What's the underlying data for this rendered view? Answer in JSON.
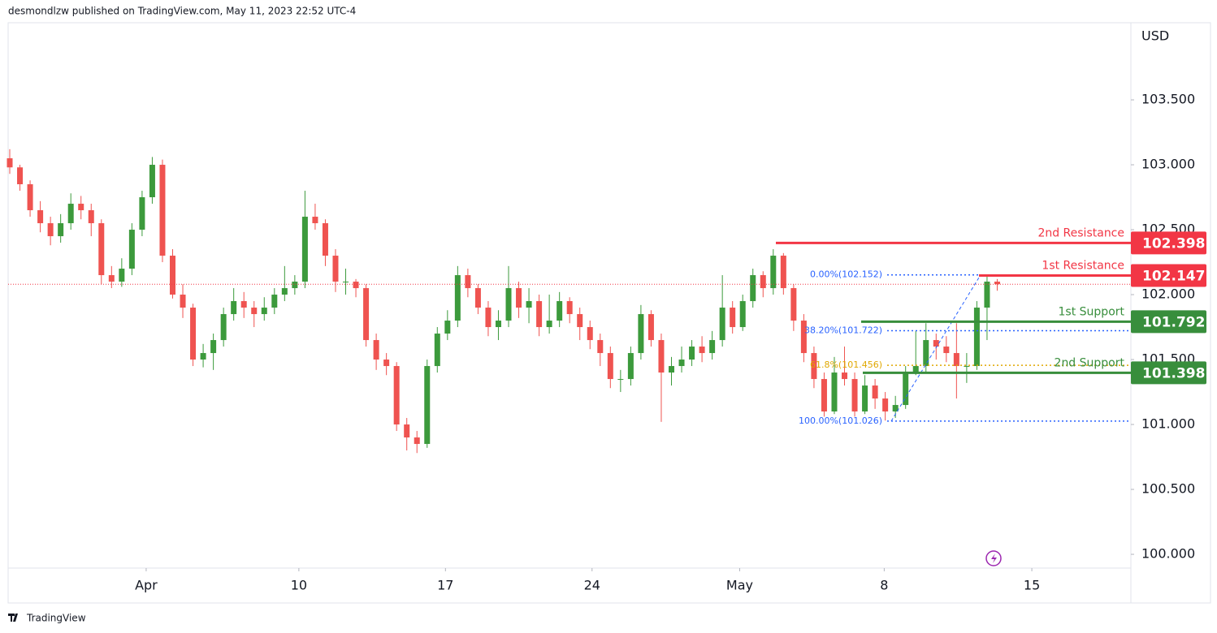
{
  "header": {
    "text": "desmondlzw published on TradingView.com, May 11, 2023 22:52 UTC-4"
  },
  "footer": {
    "brand": "TradingView"
  },
  "chart_data": {
    "type": "candlestick",
    "currency": "USD",
    "up_color": "#3c9a3c",
    "down_color": "#ef5350",
    "ylim": [
      99.894,
      104.094
    ],
    "yticks": [
      {
        "value": 100,
        "label": "100.000"
      },
      {
        "value": 100.5,
        "label": "100.500"
      },
      {
        "value": 101,
        "label": "101.000"
      },
      {
        "value": 101.5,
        "label": "101.500"
      },
      {
        "value": 102,
        "label": "102.000"
      },
      {
        "value": 102.5,
        "label": "102.500"
      },
      {
        "value": 103,
        "label": "103.000"
      },
      {
        "value": 103.5,
        "label": "103.500"
      }
    ],
    "xlim": [
      -0.16,
      110.13
    ],
    "xticks": [
      {
        "value": 13.4,
        "label": "Apr"
      },
      {
        "value": 28.4,
        "label": "10"
      },
      {
        "value": 42.8,
        "label": "17"
      },
      {
        "value": 57.2,
        "label": "24"
      },
      {
        "value": 71.7,
        "label": "May"
      },
      {
        "value": 85.9,
        "label": "8"
      },
      {
        "value": 100.4,
        "label": "15"
      }
    ],
    "open": [
      103.05,
      102.98,
      102.85,
      102.65,
      102.55,
      102.45,
      102.55,
      102.7,
      102.65,
      102.55,
      102.15,
      102.1,
      102.2,
      102.5,
      102.75,
      103.0,
      102.3,
      102.0,
      101.9,
      101.5,
      101.55,
      101.65,
      101.85,
      101.95,
      101.9,
      101.85,
      101.9,
      102.0,
      102.05,
      102.1,
      102.6,
      102.55,
      102.3,
      102.1,
      102.1,
      102.05,
      101.65,
      101.5,
      101.45,
      101.0,
      100.9,
      100.85,
      101.45,
      101.7,
      101.8,
      102.15,
      102.05,
      101.9,
      101.75,
      101.8,
      102.05,
      101.9,
      101.95,
      101.75,
      101.8,
      101.95,
      101.85,
      101.75,
      101.65,
      101.55,
      101.35,
      101.35,
      101.55,
      101.85,
      101.65,
      101.4,
      101.45,
      101.5,
      101.6,
      101.55,
      101.65,
      101.9,
      101.75,
      101.95,
      102.15,
      102.05,
      102.3,
      102.05,
      101.8,
      101.55,
      101.35,
      101.1,
      101.4,
      101.35,
      101.1,
      101.3,
      101.2,
      101.1,
      101.15,
      101.4,
      101.45,
      101.65,
      101.6,
      101.55,
      101.45,
      101.45,
      101.9,
      102.1
    ],
    "high": [
      103.12,
      103.0,
      102.88,
      102.72,
      102.6,
      102.62,
      102.78,
      102.76,
      102.7,
      102.58,
      102.22,
      102.28,
      102.55,
      102.8,
      103.06,
      103.04,
      102.35,
      102.08,
      101.93,
      101.62,
      101.7,
      101.9,
      102.05,
      102.02,
      101.95,
      101.98,
      102.05,
      102.22,
      102.15,
      102.8,
      102.7,
      102.58,
      102.35,
      102.2,
      102.12,
      102.08,
      101.7,
      101.55,
      101.48,
      101.05,
      100.95,
      101.5,
      101.75,
      101.88,
      102.22,
      102.2,
      102.08,
      101.95,
      101.88,
      102.22,
      102.1,
      102.05,
      102.0,
      102.0,
      102.02,
      101.98,
      101.9,
      101.8,
      101.7,
      101.6,
      101.42,
      101.6,
      101.92,
      101.88,
      101.7,
      101.52,
      101.6,
      101.65,
      101.68,
      101.72,
      102.15,
      101.95,
      102.0,
      102.2,
      102.18,
      102.35,
      102.32,
      102.08,
      101.85,
      101.6,
      101.4,
      101.52,
      101.6,
      101.4,
      101.38,
      101.35,
      101.25,
      101.22,
      101.45,
      101.72,
      101.78,
      101.7,
      101.68,
      101.78,
      101.55,
      101.95,
      102.15,
      102.12
    ],
    "low": [
      102.93,
      102.8,
      102.6,
      102.48,
      102.38,
      102.4,
      102.5,
      102.58,
      102.45,
      102.08,
      102.05,
      102.06,
      102.15,
      102.45,
      102.7,
      102.25,
      101.97,
      101.82,
      101.45,
      101.44,
      101.42,
      101.6,
      101.8,
      101.82,
      101.75,
      101.8,
      101.85,
      101.95,
      102.0,
      102.05,
      102.5,
      102.22,
      102.02,
      102.0,
      101.98,
      101.6,
      101.42,
      101.38,
      100.95,
      100.8,
      100.78,
      100.82,
      101.4,
      101.65,
      101.75,
      101.98,
      101.85,
      101.68,
      101.65,
      101.75,
      101.82,
      101.78,
      101.68,
      101.7,
      101.75,
      101.78,
      101.65,
      101.58,
      101.45,
      101.28,
      101.25,
      101.3,
      101.5,
      101.6,
      101.02,
      101.3,
      101.4,
      101.45,
      101.48,
      101.5,
      101.6,
      101.7,
      101.72,
      101.9,
      101.98,
      102.0,
      102.0,
      101.72,
      101.48,
      101.28,
      101.06,
      101.08,
      101.3,
      101.06,
      101.08,
      101.12,
      101.03,
      101.05,
      101.12,
      101.38,
      101.4,
      101.5,
      101.48,
      101.2,
      101.32,
      101.42,
      101.65,
      102.03
    ],
    "close": [
      102.98,
      102.85,
      102.65,
      102.55,
      102.45,
      102.55,
      102.7,
      102.65,
      102.55,
      102.15,
      102.1,
      102.2,
      102.5,
      102.75,
      103.0,
      102.3,
      102.0,
      101.9,
      101.5,
      101.55,
      101.65,
      101.85,
      101.95,
      101.9,
      101.85,
      101.9,
      102.0,
      102.05,
      102.1,
      102.6,
      102.55,
      102.3,
      102.1,
      102.1,
      102.05,
      101.65,
      101.5,
      101.45,
      101.0,
      100.9,
      100.85,
      101.45,
      101.7,
      101.8,
      102.15,
      102.05,
      101.9,
      101.75,
      101.8,
      102.05,
      101.9,
      101.95,
      101.75,
      101.8,
      101.95,
      101.85,
      101.75,
      101.65,
      101.55,
      101.35,
      101.35,
      101.55,
      101.85,
      101.65,
      101.4,
      101.45,
      101.5,
      101.6,
      101.55,
      101.65,
      101.9,
      101.75,
      101.95,
      102.15,
      102.05,
      102.3,
      102.05,
      101.8,
      101.55,
      101.35,
      101.1,
      101.4,
      101.35,
      101.1,
      101.3,
      101.2,
      101.1,
      101.15,
      101.4,
      101.45,
      101.65,
      101.6,
      101.55,
      101.45,
      101.45,
      101.9,
      102.1,
      102.08
    ],
    "levels": [
      {
        "name": "2nd Resistance",
        "value": 102.398,
        "color": "#f23645"
      },
      {
        "name": "1st Resistance",
        "value": 102.147,
        "color": "#f23645"
      },
      {
        "name": "1st Support",
        "value": 101.792,
        "color": "#388e3c"
      },
      {
        "name": "2nd Support",
        "value": 101.398,
        "color": "#388e3c"
      }
    ],
    "fib": [
      {
        "label": "0.00%(102.152)",
        "value": 102.152,
        "color": "#2962ff"
      },
      {
        "label": "38.20%(101.722)",
        "value": 101.722,
        "color": "#2962ff"
      },
      {
        "label": "61.8%(101.456)",
        "value": 101.456,
        "color": "#e0a800"
      },
      {
        "label": "100.00%(101.026)",
        "value": 101.026,
        "color": "#2962ff"
      }
    ]
  }
}
